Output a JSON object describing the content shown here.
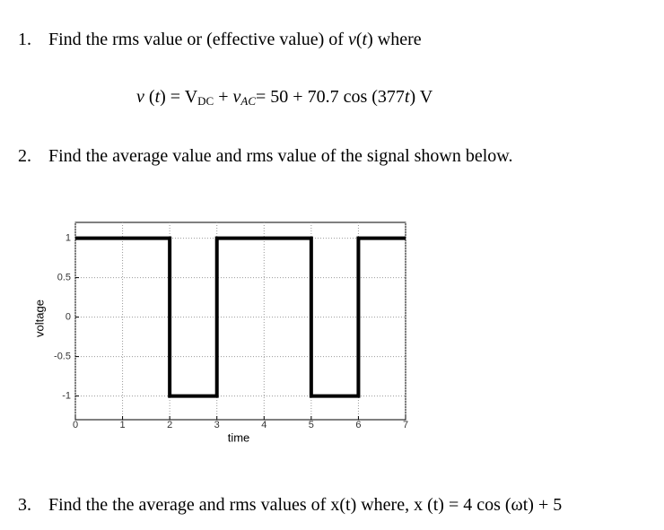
{
  "questions": [
    {
      "number": "1.",
      "parts": [
        "Find the rms value or (effective value) of ",
        "v",
        "(",
        "t",
        ") where"
      ],
      "formula": [
        "v",
        " (",
        "t",
        ") = V",
        "DC",
        " + ",
        "v",
        "AC",
        "= 50 + 70.7 cos (377",
        "t",
        ") V"
      ]
    },
    {
      "number": "2.",
      "parts": [
        "Find the average value and rms value of the signal shown below."
      ]
    },
    {
      "number": "3.",
      "parts": [
        "Find the the average and rms values of x(t) where, x (t) = 4 cos (ωt) + 5"
      ]
    }
  ],
  "chart_data": {
    "type": "line",
    "x_label": "time",
    "y_label": "voltage",
    "x": [
      0,
      2,
      2,
      3,
      3,
      5,
      5,
      6,
      6,
      7
    ],
    "series": [
      {
        "color": "#000000",
        "values": [
          1,
          1,
          -1,
          -1,
          1,
          1,
          -1,
          -1,
          1,
          1
        ]
      }
    ],
    "xlim": [
      0,
      7
    ],
    "xticks": [
      0,
      1,
      2,
      3,
      4,
      5,
      6,
      7
    ],
    "ylim": [
      -1.3,
      1.2
    ],
    "yticks": [
      -1,
      -0.5,
      0,
      0.5,
      1
    ],
    "grid": true
  }
}
